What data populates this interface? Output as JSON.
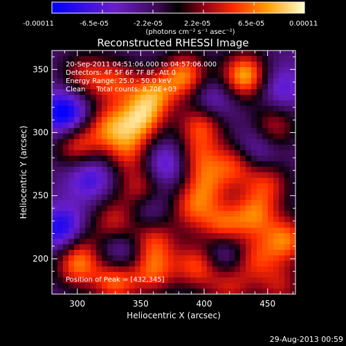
{
  "chart_data": {
    "type": "heatmap",
    "title": "Reconstructed RHESSI Image",
    "xlabel": "Heliocentric X (arcsec)",
    "ylabel": "Heliocentric Y (arcsec)",
    "xlim": [
      280,
      472
    ],
    "ylim": [
      172,
      365
    ],
    "xticks": [
      300,
      350,
      400,
      450
    ],
    "yticks": [
      200,
      250,
      300,
      350
    ],
    "colorbar": {
      "ticks": [
        "-0.00011",
        "-6.5e-05",
        "-2.2e-05",
        "2.2e-05",
        "6.5e-05",
        "0.00011"
      ],
      "unit_label": "(photons cm⁻² s⁻¹ asec⁻²)",
      "range": [
        -0.00011,
        0.00011
      ]
    },
    "annotations": [
      "20-Sep-2011 04:51:06.000 to 04:57:06.000",
      "Detectors: 4F 5F 6F 7F 8F, Att 0",
      "Energy Range: 25.0 - 50.0 keV",
      "Clean     Total counts: 8.70E+03"
    ],
    "peak_label": "Position of Peak = [432,345]",
    "peak": [
      432,
      345
    ],
    "blobs": [
      {
        "x": 432,
        "y": 345,
        "v": 1.0
      },
      {
        "x": 385,
        "y": 345,
        "v": 0.85
      },
      {
        "x": 360,
        "y": 330,
        "v": 0.75
      },
      {
        "x": 330,
        "y": 340,
        "v": 0.6
      },
      {
        "x": 305,
        "y": 345,
        "v": 0.55
      },
      {
        "x": 350,
        "y": 310,
        "v": 0.8
      },
      {
        "x": 325,
        "y": 305,
        "v": 0.7
      },
      {
        "x": 398,
        "y": 307,
        "v": 0.75
      },
      {
        "x": 455,
        "y": 305,
        "v": 0.55
      },
      {
        "x": 300,
        "y": 290,
        "v": 0.7
      },
      {
        "x": 340,
        "y": 285,
        "v": 0.6
      },
      {
        "x": 395,
        "y": 280,
        "v": 0.55
      },
      {
        "x": 425,
        "y": 275,
        "v": 0.7
      },
      {
        "x": 350,
        "y": 255,
        "v": 0.65
      },
      {
        "x": 402,
        "y": 258,
        "v": 0.55
      },
      {
        "x": 450,
        "y": 260,
        "v": 0.6
      },
      {
        "x": 390,
        "y": 240,
        "v": 0.6
      },
      {
        "x": 440,
        "y": 235,
        "v": 0.7
      },
      {
        "x": 330,
        "y": 230,
        "v": 0.6
      },
      {
        "x": 300,
        "y": 215,
        "v": 0.5
      },
      {
        "x": 360,
        "y": 215,
        "v": 0.65
      },
      {
        "x": 415,
        "y": 225,
        "v": 0.75
      },
      {
        "x": 465,
        "y": 215,
        "v": 0.8
      },
      {
        "x": 440,
        "y": 200,
        "v": 0.6
      },
      {
        "x": 300,
        "y": 195,
        "v": 0.75
      },
      {
        "x": 330,
        "y": 182,
        "v": 0.8
      },
      {
        "x": 360,
        "y": 190,
        "v": 0.7
      },
      {
        "x": 395,
        "y": 195,
        "v": 0.75
      },
      {
        "x": 420,
        "y": 178,
        "v": 0.55
      },
      {
        "x": 460,
        "y": 178,
        "v": 0.5
      },
      {
        "x": 290,
        "y": 315,
        "v": -0.85
      },
      {
        "x": 290,
        "y": 222,
        "v": -0.9
      },
      {
        "x": 310,
        "y": 265,
        "v": -0.5
      },
      {
        "x": 370,
        "y": 275,
        "v": -0.5
      },
      {
        "x": 440,
        "y": 285,
        "v": -0.45
      },
      {
        "x": 415,
        "y": 205,
        "v": -0.5
      },
      {
        "x": 355,
        "y": 240,
        "v": -0.4
      },
      {
        "x": 460,
        "y": 335,
        "v": -0.4
      },
      {
        "x": 405,
        "y": 325,
        "v": -0.45
      },
      {
        "x": 335,
        "y": 205,
        "v": -0.4
      }
    ]
  },
  "footer": {
    "date": "29-Aug-2013 00:59"
  }
}
